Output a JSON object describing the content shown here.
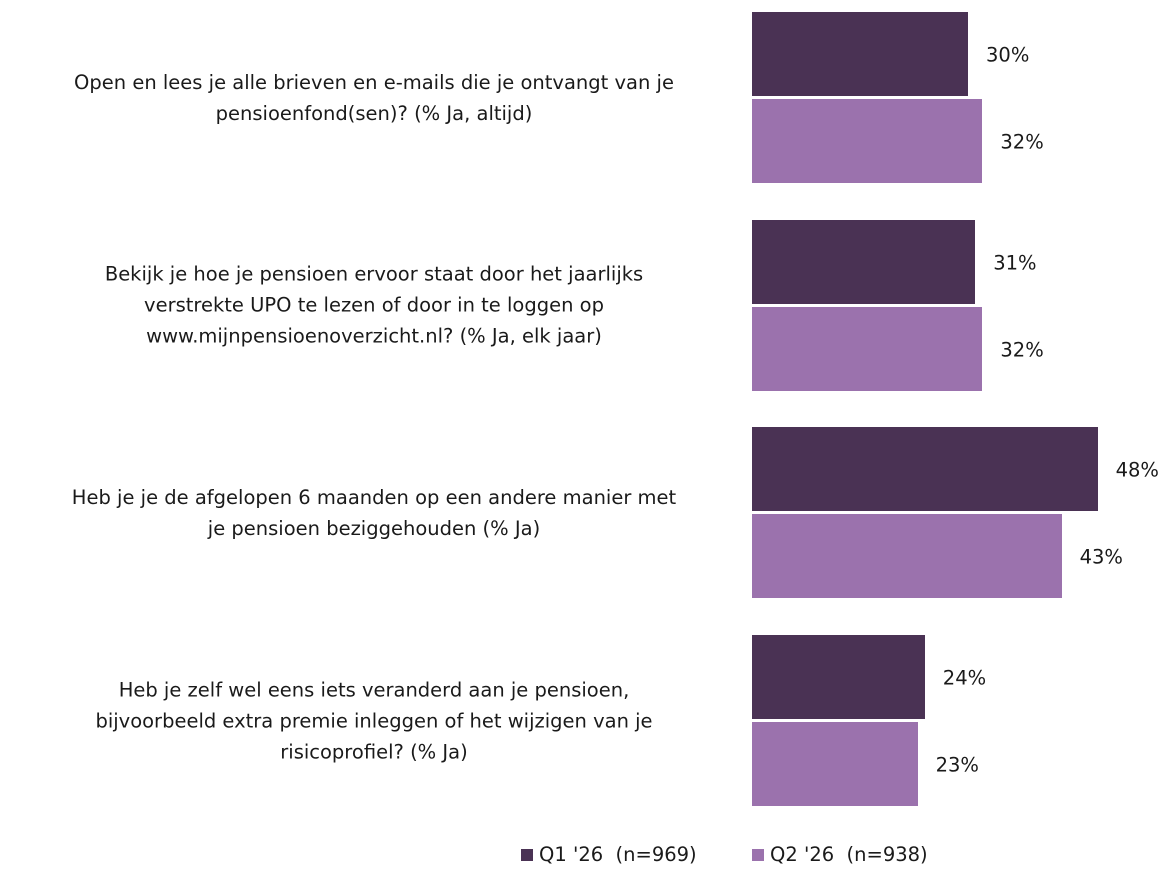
{
  "chart_data": {
    "type": "hbar",
    "categories": [
      "Open en lees je alle brieven en e-mails die je ontvangt van je\npensioenfond(sen)? (% Ja, altijd)",
      "Bekijk je hoe je pensioen ervoor staat door het jaarlijks\nverstrekte UPO te lezen of door in te loggen op\nwww.mijnpensioenoverzicht.nl? (% Ja, elk jaar)",
      "Heb je je de afgelopen 6 maanden op een andere manier met\nje pensioen beziggehouden (% Ja)",
      "Heb je zelf wel eens iets veranderd aan je pensioen,\nbijvoorbeeld extra premie inleggen of het wijzigen van je\nrisicoprofiel? (% Ja)"
    ],
    "series": [
      {
        "name": "Q1 '26  (n=969)",
        "color": "#4a3254",
        "values": [
          30,
          31,
          48,
          24
        ],
        "value_labels": [
          "30%",
          "31%",
          "48%",
          "24%"
        ]
      },
      {
        "name": "Q2 '26  (n=938)",
        "color": "#9b72ad",
        "values": [
          32,
          32,
          43,
          23
        ],
        "value_labels": [
          "32%",
          "32%",
          "43%",
          "23%"
        ]
      }
    ]
  }
}
